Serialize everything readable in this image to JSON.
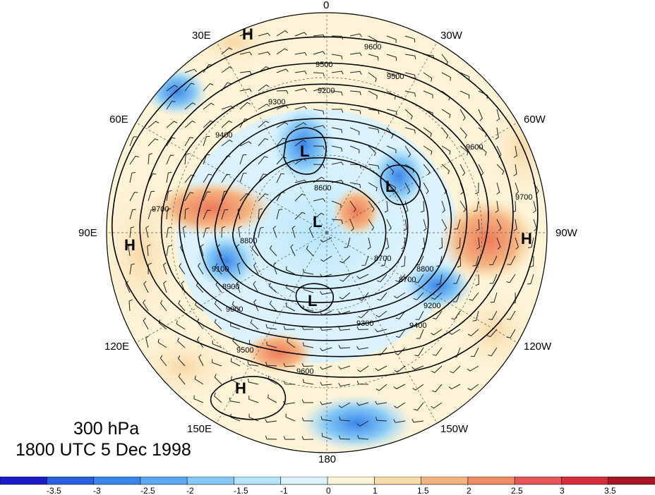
{
  "caption": {
    "level": "300 hPa",
    "time": "1800 UTC 5 Dec 1998"
  },
  "longitude_labels": [
    "0",
    "30W",
    "60W",
    "90W",
    "120W",
    "150W",
    "180",
    "150E",
    "120E",
    "90E",
    "60E",
    "30E"
  ],
  "pressure_centers": [
    {
      "label": "H",
      "name": "high-center-30e"
    },
    {
      "label": "H",
      "name": "high-center-90e"
    },
    {
      "label": "H",
      "name": "high-center-90w"
    },
    {
      "label": "H",
      "name": "high-center-150e"
    },
    {
      "label": "L",
      "name": "low-center-scandinavia"
    },
    {
      "label": "L",
      "name": "low-center-polar"
    },
    {
      "label": "L",
      "name": "low-center-greenland"
    },
    {
      "label": "L",
      "name": "low-center-siberia"
    }
  ],
  "contour_labels": [
    "9600",
    "9500",
    "9300",
    "9200",
    "9400",
    "9100",
    "9000",
    "8800",
    "8900",
    "8700",
    "8600",
    "9700",
    "9500",
    "9600",
    "9400",
    "9300",
    "9200",
    "8800",
    "8700",
    "9700",
    "9500",
    "9600"
  ],
  "colorbar": {
    "ticks": [
      "-3.5",
      "-3",
      "-2.5",
      "-2",
      "-1.5",
      "-1",
      "0",
      "1",
      "1.5",
      "2",
      "2.5",
      "3",
      "3.5"
    ],
    "colors": [
      "#1c1ccc",
      "#2a5fe0",
      "#3a86ea",
      "#5aa8f2",
      "#86c8f5",
      "#b5e5fb",
      "#dcf3fd",
      "#fdf3d6",
      "#f8dcaa",
      "#f4b482",
      "#ee8c66",
      "#e5585a",
      "#d52f3c",
      "#a71827"
    ]
  }
}
